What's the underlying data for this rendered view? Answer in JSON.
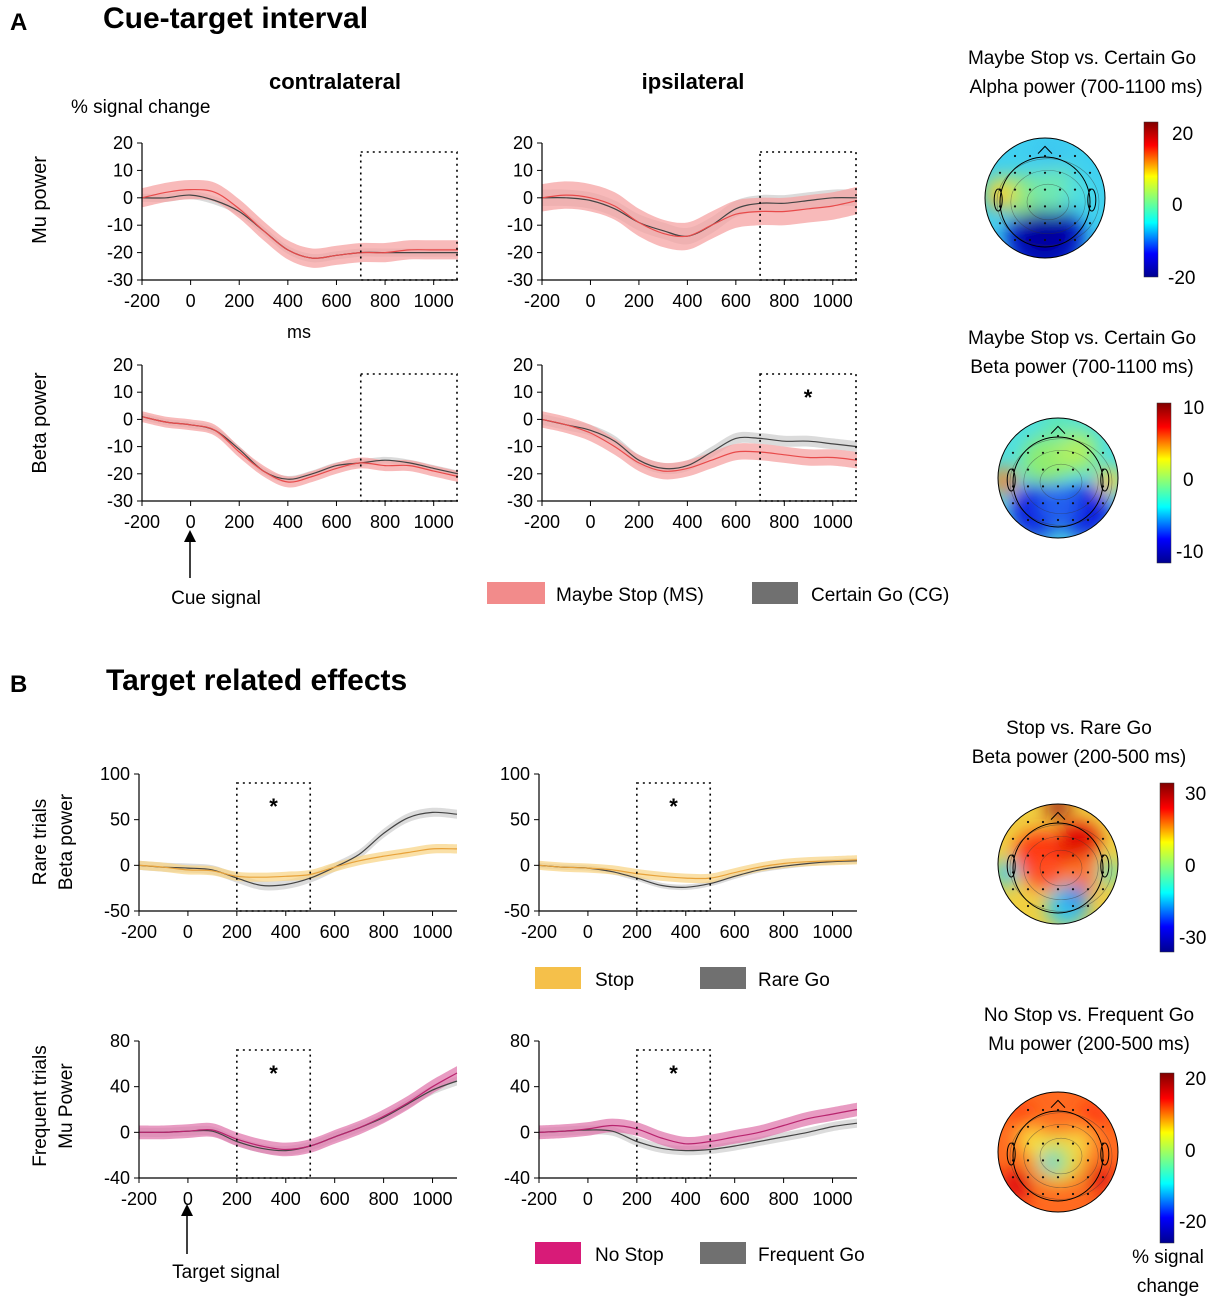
{
  "panelA": {
    "letter": "A",
    "title": "Cue-target interval"
  },
  "panelB": {
    "letter": "B",
    "title": "Target related effects"
  },
  "headers": {
    "contra": "contralateral",
    "ipsi": "ipsilateral"
  },
  "yunit": "% signal change",
  "xunit": "ms",
  "rowlabels": {
    "mu": "Mu power",
    "beta": "Beta power",
    "rare1": "Rare trials",
    "rare2": "Beta power",
    "freq1": "Frequent trials",
    "freq2": "Mu Power"
  },
  "annotations": {
    "cue": "Cue signal",
    "target": "Target signal",
    "star": "*"
  },
  "legends": {
    "A": [
      {
        "label": "Maybe Stop (MS)",
        "color": "#f28b8b"
      },
      {
        "label": "Certain Go (CG)",
        "color": "#707070"
      }
    ],
    "B1": [
      {
        "label": "Stop",
        "color": "#f5c04a"
      },
      {
        "label": "Rare Go",
        "color": "#707070"
      }
    ],
    "B2": [
      {
        "label": "No Stop",
        "color": "#d81b78"
      },
      {
        "label": "Frequent Go",
        "color": "#707070"
      }
    ]
  },
  "topomaps": [
    {
      "title1": "Maybe Stop vs. Certain Go",
      "title2": "Alpha power (700-1100 ms)",
      "scale": [
        "20",
        "0",
        "-20"
      ],
      "pattern": "alpha"
    },
    {
      "title1": "Maybe Stop vs. Certain Go",
      "title2": "Beta power (700-1100 ms)",
      "scale": [
        "10",
        "0",
        "-10"
      ],
      "pattern": "betaA"
    },
    {
      "title1": "Stop vs. Rare Go",
      "title2": "Beta power (200-500 ms)",
      "scale": [
        "30",
        "0",
        "-30"
      ],
      "pattern": "betaB"
    },
    {
      "title1": "No Stop vs. Frequent Go",
      "title2": "Mu power (200-500 ms)",
      "scale": [
        "20",
        "0",
        "-20"
      ],
      "pattern": "muB"
    }
  ],
  "colorbar_label": "% signal change",
  "chart_data": [
    {
      "id": "A_mu_contra",
      "type": "line",
      "ylim": [
        -30,
        20
      ],
      "yticks": [
        20,
        10,
        0,
        -10,
        -20,
        -30
      ],
      "xlim": [
        -200,
        1100
      ],
      "xticks": [
        -200,
        0,
        200,
        400,
        600,
        800,
        1000
      ],
      "window": [
        700,
        1100
      ],
      "significant": false,
      "x": [
        -200,
        -100,
        0,
        100,
        200,
        300,
        400,
        500,
        600,
        700,
        800,
        900,
        1000,
        1100
      ],
      "series": [
        {
          "name": "Maybe Stop (MS)",
          "values": [
            0,
            2,
            3,
            2,
            -4,
            -12,
            -19,
            -22,
            -21,
            -20,
            -20,
            -19,
            -19,
            -19
          ],
          "sd": 3.5,
          "color": "#e84a4a",
          "fill": "#f5a3a3"
        },
        {
          "name": "Certain Go (CG)",
          "values": [
            0,
            0,
            1,
            -1,
            -5,
            -12,
            -19,
            -22,
            -21,
            -20,
            -20,
            -20,
            -20,
            -20
          ],
          "sd": 1.5,
          "color": "#444444",
          "fill": "#cfcfcf"
        }
      ]
    },
    {
      "id": "A_mu_ipsi",
      "type": "line",
      "ylim": [
        -30,
        20
      ],
      "yticks": [
        20,
        10,
        0,
        -10,
        -20,
        -30
      ],
      "xlim": [
        -200,
        1100
      ],
      "xticks": [
        -200,
        0,
        200,
        400,
        600,
        800,
        1000
      ],
      "window": [
        700,
        1100
      ],
      "significant": false,
      "x": [
        -200,
        -100,
        0,
        100,
        200,
        300,
        400,
        500,
        600,
        700,
        800,
        900,
        1000,
        1100
      ],
      "series": [
        {
          "name": "Maybe Stop (MS)",
          "values": [
            0,
            1,
            0,
            -3,
            -9,
            -13,
            -14,
            -10,
            -6,
            -5,
            -5,
            -4,
            -3,
            -1
          ],
          "sd": 5,
          "color": "#e84a4a",
          "fill": "#f5a3a3"
        },
        {
          "name": "Certain Go (CG)",
          "values": [
            0,
            0,
            -1,
            -4,
            -9,
            -12,
            -14,
            -10,
            -4,
            -2,
            -2,
            -1,
            0,
            0
          ],
          "sd": 3,
          "color": "#444444",
          "fill": "#cfcfcf"
        }
      ]
    },
    {
      "id": "A_beta_contra",
      "type": "line",
      "ylim": [
        -30,
        20
      ],
      "yticks": [
        20,
        10,
        0,
        -10,
        -20,
        -30
      ],
      "xlim": [
        -200,
        1100
      ],
      "xticks": [
        -200,
        0,
        200,
        400,
        600,
        800,
        1000
      ],
      "window": [
        700,
        1100
      ],
      "significant": false,
      "x": [
        -200,
        -100,
        0,
        100,
        200,
        300,
        400,
        500,
        600,
        700,
        800,
        900,
        1000,
        1100
      ],
      "series": [
        {
          "name": "Maybe Stop (MS)",
          "values": [
            1,
            -1,
            -2,
            -4,
            -12,
            -19,
            -23,
            -21,
            -18,
            -16,
            -17,
            -17,
            -19,
            -21
          ],
          "sd": 2,
          "color": "#e84a4a",
          "fill": "#f5a3a3"
        },
        {
          "name": "Certain Go (CG)",
          "values": [
            1,
            -1,
            -2,
            -4,
            -11,
            -19,
            -22,
            -20,
            -17,
            -16,
            -15,
            -16,
            -18,
            -20
          ],
          "sd": 1.2,
          "color": "#444444",
          "fill": "#cfcfcf"
        }
      ]
    },
    {
      "id": "A_beta_ipsi",
      "type": "line",
      "ylim": [
        -30,
        20
      ],
      "yticks": [
        20,
        10,
        0,
        -10,
        -20,
        -30
      ],
      "xlim": [
        -200,
        1100
      ],
      "xticks": [
        -200,
        0,
        200,
        400,
        600,
        800,
        1000
      ],
      "window": [
        700,
        1100
      ],
      "significant": true,
      "x": [
        -200,
        -100,
        0,
        100,
        200,
        300,
        400,
        500,
        600,
        700,
        800,
        900,
        1000,
        1100
      ],
      "series": [
        {
          "name": "Maybe Stop (MS)",
          "values": [
            0,
            -2,
            -5,
            -10,
            -16,
            -19,
            -18,
            -15,
            -12,
            -12,
            -13,
            -14,
            -14,
            -15
          ],
          "sd": 3,
          "color": "#e84a4a",
          "fill": "#f5a3a3"
        },
        {
          "name": "Certain Go (CG)",
          "values": [
            0,
            -2,
            -4,
            -8,
            -15,
            -18,
            -17,
            -12,
            -7,
            -7,
            -8,
            -8,
            -9,
            -10
          ],
          "sd": 2,
          "color": "#444444",
          "fill": "#cfcfcf"
        }
      ]
    },
    {
      "id": "B_rare_1",
      "type": "line",
      "ylim": [
        -50,
        100
      ],
      "yticks": [
        100,
        50,
        0,
        -50
      ],
      "xlim": [
        -200,
        1100
      ],
      "xticks": [
        -200,
        0,
        200,
        400,
        600,
        800,
        1000
      ],
      "window": [
        200,
        500
      ],
      "significant": true,
      "x": [
        -200,
        -100,
        0,
        100,
        200,
        300,
        400,
        500,
        600,
        700,
        800,
        900,
        1000,
        1100
      ],
      "series": [
        {
          "name": "Stop",
          "values": [
            0,
            -2,
            -5,
            -6,
            -12,
            -13,
            -12,
            -10,
            -2,
            5,
            10,
            14,
            18,
            18
          ],
          "sd": 5,
          "color": "#e8a23a",
          "fill": "#f8d58a"
        },
        {
          "name": "Rare Go",
          "values": [
            0,
            -2,
            -3,
            -5,
            -14,
            -22,
            -21,
            -14,
            -2,
            12,
            35,
            52,
            58,
            56
          ],
          "sd": 5,
          "color": "#444444",
          "fill": "#d0d0d0"
        }
      ]
    },
    {
      "id": "B_rare_2",
      "type": "line",
      "ylim": [
        -50,
        100
      ],
      "yticks": [
        100,
        50,
        0,
        -50
      ],
      "xlim": [
        -200,
        1100
      ],
      "xticks": [
        -200,
        0,
        200,
        400,
        600,
        800,
        1000
      ],
      "window": [
        200,
        500
      ],
      "significant": true,
      "x": [
        -200,
        -100,
        0,
        100,
        200,
        300,
        400,
        500,
        600,
        700,
        800,
        900,
        1000,
        1100
      ],
      "series": [
        {
          "name": "Stop",
          "values": [
            0,
            -2,
            -3,
            -5,
            -9,
            -12,
            -14,
            -14,
            -8,
            -2,
            2,
            4,
            5,
            6
          ],
          "sd": 5,
          "color": "#e8a23a",
          "fill": "#f8d58a"
        },
        {
          "name": "Rare Go",
          "values": [
            0,
            -2,
            -3,
            -7,
            -14,
            -22,
            -24,
            -20,
            -12,
            -5,
            -1,
            2,
            4,
            5
          ],
          "sd": 3,
          "color": "#444444",
          "fill": "#d0d0d0"
        }
      ]
    },
    {
      "id": "B_freq_1",
      "type": "line",
      "ylim": [
        -40,
        80
      ],
      "yticks": [
        80,
        40,
        0,
        -40
      ],
      "xlim": [
        -200,
        1100
      ],
      "xticks": [
        -200,
        0,
        200,
        400,
        600,
        800,
        1000
      ],
      "window": [
        200,
        500
      ],
      "significant": true,
      "x": [
        -200,
        -100,
        0,
        100,
        200,
        300,
        400,
        500,
        600,
        700,
        800,
        900,
        1000,
        1100
      ],
      "series": [
        {
          "name": "No Stop",
          "values": [
            0,
            0,
            1,
            2,
            -6,
            -12,
            -15,
            -12,
            -4,
            4,
            14,
            26,
            40,
            52
          ],
          "sd": 6,
          "color": "#b8246e",
          "fill": "#e079ad"
        },
        {
          "name": "Frequent Go",
          "values": [
            0,
            0,
            1,
            1,
            -8,
            -14,
            -16,
            -12,
            -4,
            4,
            13,
            25,
            37,
            45
          ],
          "sd": 4,
          "color": "#444444",
          "fill": "#d0d0d0"
        }
      ]
    },
    {
      "id": "B_freq_2",
      "type": "line",
      "ylim": [
        -40,
        80
      ],
      "yticks": [
        80,
        40,
        0,
        -40
      ],
      "xlim": [
        -200,
        1100
      ],
      "xticks": [
        -200,
        0,
        200,
        400,
        600,
        800,
        1000
      ],
      "window": [
        200,
        500
      ],
      "significant": true,
      "x": [
        -200,
        -100,
        0,
        100,
        200,
        300,
        400,
        500,
        600,
        700,
        800,
        900,
        1000,
        1100
      ],
      "series": [
        {
          "name": "No Stop",
          "values": [
            0,
            1,
            3,
            6,
            3,
            -5,
            -10,
            -8,
            -4,
            0,
            6,
            12,
            16,
            20
          ],
          "sd": 6,
          "color": "#b8246e",
          "fill": "#e079ad"
        },
        {
          "name": "Frequent Go",
          "values": [
            0,
            1,
            2,
            1,
            -8,
            -14,
            -16,
            -15,
            -12,
            -8,
            -4,
            0,
            5,
            8
          ],
          "sd": 4,
          "color": "#444444",
          "fill": "#d0d0d0"
        }
      ]
    }
  ]
}
